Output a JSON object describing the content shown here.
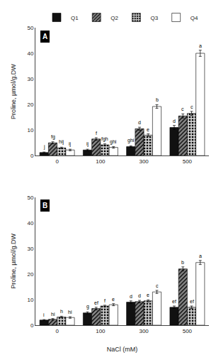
{
  "chart_data": [
    {
      "type": "bar",
      "title": "A",
      "y_label": "Proline, µmol/g.DW",
      "categories": [
        "0",
        "100",
        "300",
        "500"
      ],
      "series": [
        {
          "name": "Q1",
          "color": "#111111",
          "values": [
            1.2,
            2.2,
            3.5,
            11.0
          ],
          "errors": [
            0.2,
            0.3,
            0.3,
            0.8
          ],
          "annotations": [
            "j",
            "ij",
            "ghi",
            "d"
          ]
        },
        {
          "name": "Q2",
          "color": "#888888",
          "values": [
            5.0,
            6.5,
            10.5,
            15.5
          ],
          "errors": [
            0.4,
            0.5,
            0.6,
            0.8
          ],
          "annotations": [
            "fg",
            "f",
            "d",
            "c"
          ]
        },
        {
          "name": "Q3",
          "color": "#cccccc",
          "values": [
            3.0,
            4.2,
            8.0,
            16.5
          ],
          "errors": [
            0.3,
            0.4,
            0.5,
            0.8
          ],
          "annotations": [
            "hij",
            "fgh",
            "e",
            "c"
          ]
        },
        {
          "name": "Q4",
          "color": "#ffffff",
          "values": [
            2.2,
            3.2,
            19.2,
            40.0
          ],
          "errors": [
            0.3,
            0.3,
            0.7,
            1.2
          ],
          "annotations": [
            "ij",
            "ghi",
            "b",
            "a"
          ]
        }
      ],
      "ylim": [
        0,
        50
      ],
      "yticks": [
        0,
        10,
        20,
        30,
        40,
        50
      ],
      "grid": false,
      "legend": "top"
    },
    {
      "type": "bar",
      "title": "B",
      "y_label": "Proline, µmol/g.DW",
      "x_label": "NaCl (mM)",
      "categories": [
        "0",
        "100",
        "300",
        "500"
      ],
      "series": [
        {
          "name": "Q1",
          "color": "#111111",
          "values": [
            2.0,
            4.8,
            9.0,
            7.0
          ],
          "errors": [
            0.2,
            0.4,
            0.5,
            0.5
          ],
          "annotations": [
            "i",
            "g",
            "d",
            "ef"
          ]
        },
        {
          "name": "Q2",
          "color": "#888888",
          "values": [
            2.3,
            6.5,
            9.2,
            22.0
          ],
          "errors": [
            0.3,
            0.5,
            0.5,
            0.8
          ],
          "annotations": [
            "hi",
            "ef",
            "d",
            "b"
          ]
        },
        {
          "name": "Q3",
          "color": "#cccccc",
          "values": [
            3.2,
            7.5,
            9.5,
            7.0
          ],
          "errors": [
            0.3,
            0.3,
            0.4,
            0.5
          ],
          "annotations": [
            "h",
            "f",
            "e",
            "ef"
          ]
        },
        {
          "name": "Q4",
          "color": "#ffffff",
          "values": [
            3.0,
            8.0,
            13.0,
            24.5
          ],
          "errors": [
            0.3,
            0.4,
            0.6,
            0.8
          ],
          "annotations": [
            "hi",
            "e",
            "c",
            "a"
          ]
        }
      ],
      "ylim": [
        0,
        50
      ],
      "yticks": [
        0,
        10,
        20,
        30,
        40,
        50
      ],
      "grid": false
    }
  ]
}
